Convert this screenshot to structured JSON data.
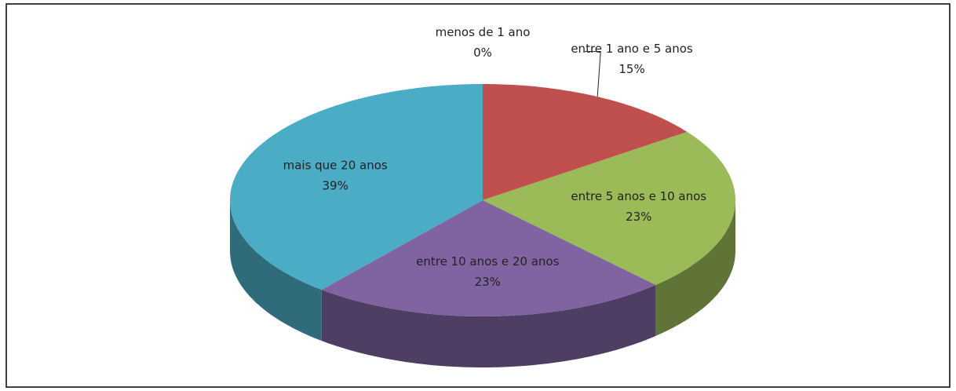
{
  "chart_data": {
    "type": "pie",
    "categories": [
      "menos de 1 ano",
      "entre 1 ano e 5 anos",
      "entre 5 anos e 10 anos",
      "entre 10 anos e 20 anos",
      "mais que 20 anos"
    ],
    "values": [
      0,
      15,
      23,
      23,
      39
    ],
    "value_labels": [
      "0%",
      "15%",
      "23%",
      "23%",
      "39%"
    ],
    "colors": [
      "#4f81bd",
      "#c0504d",
      "#9bbb59",
      "#8064a2",
      "#4bacc6"
    ]
  }
}
